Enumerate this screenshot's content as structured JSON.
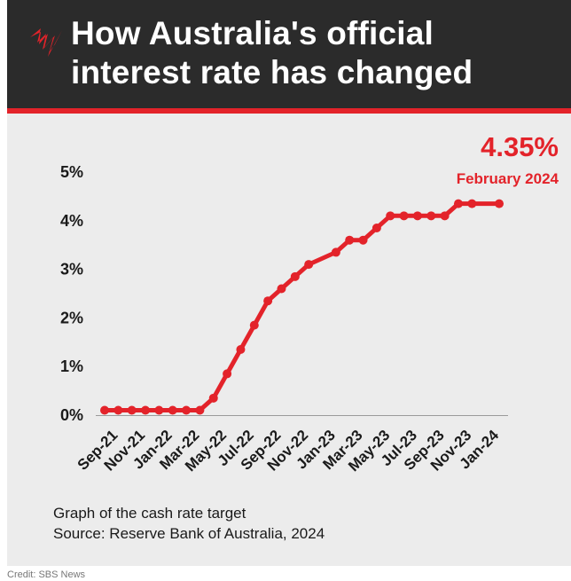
{
  "header": {
    "title_line1": "How Australia's official",
    "title_line2": "interest rate has changed",
    "logo": "sbs-logo-icon"
  },
  "callout": {
    "value": "4.35%",
    "date": "February 2024"
  },
  "caption": {
    "line1": "Graph of the cash rate target",
    "line2": "Source: Reserve Bank of Australia, 2024"
  },
  "credit": "Credit: SBS News",
  "colors": {
    "accent": "#e3232a",
    "header_bg": "#2b2b2b",
    "chart_bg": "#ececec"
  },
  "chart_data": {
    "type": "line",
    "ylim": [
      0,
      5
    ],
    "yticks": [
      0,
      1,
      2,
      3,
      4,
      5
    ],
    "ytick_labels": [
      "0%",
      "1%",
      "2%",
      "3%",
      "4%",
      "5%"
    ],
    "xtick_labels": [
      "Sep-21",
      "Nov-21",
      "Jan-22",
      "Mar-22",
      "May-22",
      "Jul-22",
      "Sep-22",
      "Nov-22",
      "Jan-23",
      "Mar-23",
      "May-23",
      "Jul-23",
      "Sep-23",
      "Nov-23",
      "Jan-24"
    ],
    "xtick_months": [
      "2021-09",
      "2021-11",
      "2022-01",
      "2022-03",
      "2022-05",
      "2022-07",
      "2022-09",
      "2022-11",
      "2023-01",
      "2023-03",
      "2023-05",
      "2023-07",
      "2023-09",
      "2023-11",
      "2024-01"
    ],
    "grid": false,
    "series": [
      {
        "color": "#e3232a",
        "points": [
          {
            "x": "2021-09",
            "y": 0.1
          },
          {
            "x": "2021-10",
            "y": 0.1
          },
          {
            "x": "2021-11",
            "y": 0.1
          },
          {
            "x": "2021-12",
            "y": 0.1
          },
          {
            "x": "2022-01",
            "y": 0.1
          },
          {
            "x": "2022-02",
            "y": 0.1
          },
          {
            "x": "2022-03",
            "y": 0.1
          },
          {
            "x": "2022-04",
            "y": 0.1
          },
          {
            "x": "2022-05",
            "y": 0.35
          },
          {
            "x": "2022-06",
            "y": 0.85
          },
          {
            "x": "2022-07",
            "y": 1.35
          },
          {
            "x": "2022-08",
            "y": 1.85
          },
          {
            "x": "2022-09",
            "y": 2.35
          },
          {
            "x": "2022-10",
            "y": 2.6
          },
          {
            "x": "2022-11",
            "y": 2.85
          },
          {
            "x": "2022-12",
            "y": 3.1
          },
          {
            "x": "2023-02",
            "y": 3.35
          },
          {
            "x": "2023-03",
            "y": 3.6
          },
          {
            "x": "2023-04",
            "y": 3.6
          },
          {
            "x": "2023-05",
            "y": 3.85
          },
          {
            "x": "2023-06",
            "y": 4.1
          },
          {
            "x": "2023-07",
            "y": 4.1
          },
          {
            "x": "2023-08",
            "y": 4.1
          },
          {
            "x": "2023-09",
            "y": 4.1
          },
          {
            "x": "2023-10",
            "y": 4.1
          },
          {
            "x": "2023-11",
            "y": 4.35
          },
          {
            "x": "2023-12",
            "y": 4.35
          },
          {
            "x": "2024-02",
            "y": 4.35
          }
        ]
      }
    ]
  }
}
